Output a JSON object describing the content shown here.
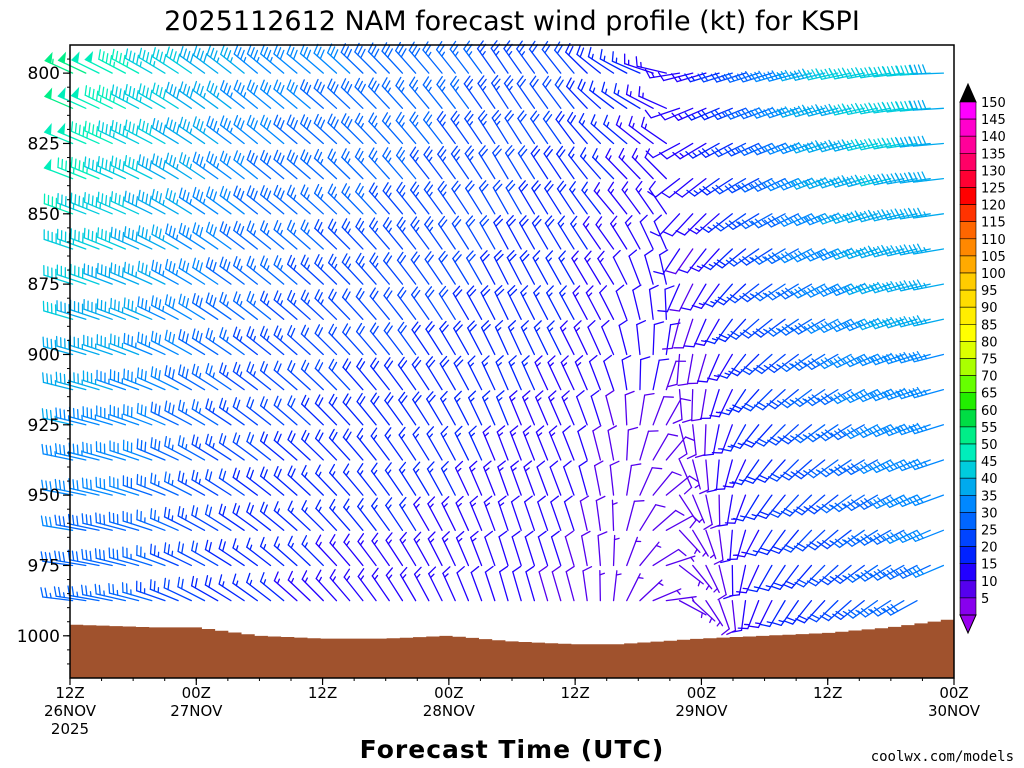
{
  "chart_data": {
    "type": "wind-barb-time-height",
    "title": "2025112612 NAM forecast wind profile (kt) for KSPI",
    "xlabel": "Forecast Time (UTC)",
    "ylabel": "",
    "credit": "coolwx.com/models",
    "y_axis": {
      "quantity": "pressure (hPa)",
      "range": [
        1015,
        790
      ],
      "ticks": [
        "800",
        "825",
        "850",
        "875",
        "900",
        "925",
        "950",
        "975",
        "1000"
      ],
      "barb_levels": [
        790,
        800,
        812.5,
        825,
        837.5,
        850,
        862.5,
        875,
        887.5,
        900,
        912.5,
        925,
        937.5,
        950,
        962.5,
        975,
        987.5,
        1000
      ]
    },
    "x_axis": {
      "range_hours": [
        0,
        84
      ],
      "ticks": [
        {
          "hour": 0,
          "line1": "12Z",
          "line2": "26NOV",
          "line3": "2025"
        },
        {
          "hour": 12,
          "line1": "00Z",
          "line2": "27NOV"
        },
        {
          "hour": 24,
          "line1": "12Z",
          "line2": ""
        },
        {
          "hour": 36,
          "line1": "00Z",
          "line2": "28NOV"
        },
        {
          "hour": 48,
          "line1": "12Z",
          "line2": ""
        },
        {
          "hour": 60,
          "line1": "00Z",
          "line2": "29NOV"
        },
        {
          "hour": 72,
          "line1": "12Z",
          "line2": ""
        },
        {
          "hour": 84,
          "line1": "00Z",
          "line2": "30NOV"
        }
      ]
    },
    "barb_columns": 67,
    "keyframes": [
      {
        "hour": 0,
        "surface_hpa": 996,
        "dir_low": 275,
        "dir_high": 295,
        "spd_low": 25,
        "spd_high": 55
      },
      {
        "hour": 8,
        "surface_hpa": 997,
        "dir_low": 285,
        "dir_high": 300,
        "spd_low": 25,
        "spd_high": 45
      },
      {
        "hour": 12,
        "surface_hpa": 997,
        "dir_low": 295,
        "dir_high": 305,
        "spd_low": 20,
        "spd_high": 42
      },
      {
        "hour": 18,
        "surface_hpa": 1000,
        "dir_low": 305,
        "dir_high": 310,
        "spd_low": 15,
        "spd_high": 35
      },
      {
        "hour": 24,
        "surface_hpa": 1001,
        "dir_low": 315,
        "dir_high": 310,
        "spd_low": 13,
        "spd_high": 32
      },
      {
        "hour": 30,
        "surface_hpa": 1001,
        "dir_low": 325,
        "dir_high": 315,
        "spd_low": 12,
        "spd_high": 30
      },
      {
        "hour": 36,
        "surface_hpa": 1000,
        "dir_low": 335,
        "dir_high": 320,
        "spd_low": 12,
        "spd_high": 28
      },
      {
        "hour": 42,
        "surface_hpa": 1002,
        "dir_low": 345,
        "dir_high": 325,
        "spd_low": 10,
        "spd_high": 25
      },
      {
        "hour": 48,
        "surface_hpa": 1003,
        "dir_low": 345,
        "dir_high": 320,
        "spd_low": 8,
        "spd_high": 22
      },
      {
        "hour": 52,
        "surface_hpa": 1003,
        "dir_low": 10,
        "dir_high": 300,
        "spd_low": 5,
        "spd_high": 18
      },
      {
        "hour": 56,
        "surface_hpa": 1002,
        "dir_low": 80,
        "dir_high": 280,
        "spd_low": 7,
        "spd_high": 15
      },
      {
        "hour": 60,
        "surface_hpa": 1001,
        "dir_low": 130,
        "dir_high": 260,
        "spd_low": 5,
        "spd_high": 12
      },
      {
        "hour": 66,
        "surface_hpa": 1000,
        "dir_low": 200,
        "dir_high": 255,
        "spd_low": 12,
        "spd_high": 28
      },
      {
        "hour": 72,
        "surface_hpa": 999,
        "dir_low": 220,
        "dir_high": 258,
        "spd_low": 18,
        "spd_high": 40
      },
      {
        "hour": 78,
        "surface_hpa": 997,
        "dir_low": 235,
        "dir_high": 262,
        "spd_low": 25,
        "spd_high": 45
      },
      {
        "hour": 84,
        "surface_hpa": 994,
        "dir_low": 245,
        "dir_high": 270,
        "spd_low": 30,
        "spd_high": 40
      }
    ],
    "colorbar": {
      "labels": [
        "150",
        "145",
        "140",
        "135",
        "130",
        "125",
        "120",
        "115",
        "110",
        "105",
        "100",
        "95",
        "90",
        "85",
        "80",
        "75",
        "70",
        "65",
        "60",
        "55",
        "50",
        "45",
        "40",
        "35",
        "30",
        "25",
        "20",
        "15",
        "10",
        "5"
      ],
      "colors": [
        "#ff00ff",
        "#ff00cc",
        "#ff0099",
        "#ff0066",
        "#ff0033",
        "#ff0000",
        "#ff3300",
        "#ff6600",
        "#ff8800",
        "#ffaa00",
        "#ffcc00",
        "#ffdd00",
        "#ffee00",
        "#ffff00",
        "#ddff00",
        "#aaff00",
        "#66ff00",
        "#22ee00",
        "#00dd44",
        "#00ee88",
        "#00eebb",
        "#00ccdd",
        "#00aaee",
        "#0088ff",
        "#0066ff",
        "#0044ff",
        "#0022ff",
        "#2200ff",
        "#5500ee",
        "#8800ee"
      ],
      "top_cap_color": "#000000",
      "bottom_cap_color": "#9900ee"
    },
    "terrain_color": "#a0522d"
  }
}
